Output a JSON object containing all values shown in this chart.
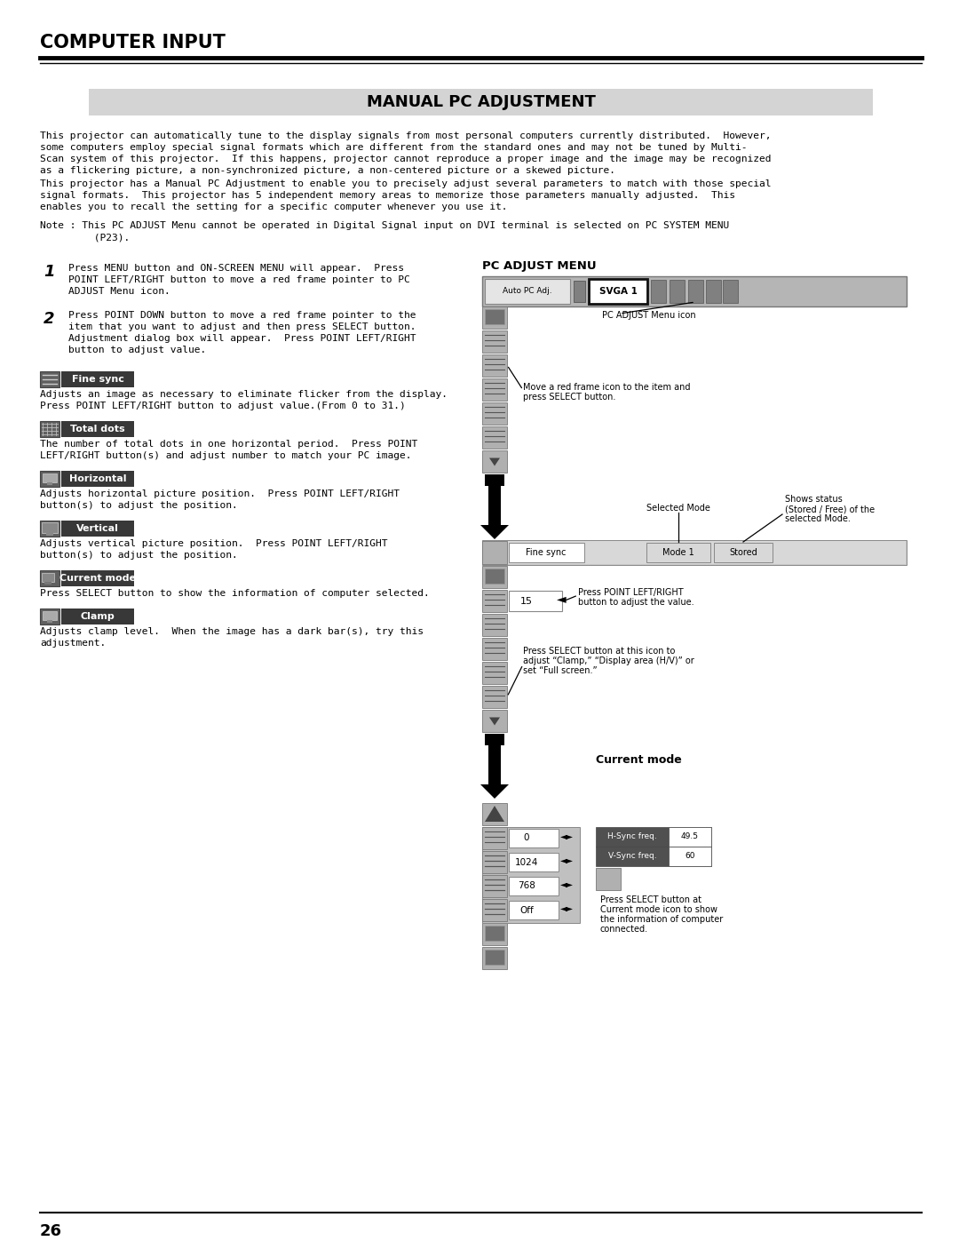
{
  "bg_color": "#ffffff",
  "page_num": "26",
  "header_title": "COMPUTER INPUT",
  "section_title": "MANUAL PC ADJUSTMENT",
  "section_title_bg": "#d4d4d4",
  "body_text_1a": "This projector can automatically tune to the display signals from most personal computers currently distributed.  However,",
  "body_text_1b": "some computers employ special signal formats which are different from the standard ones and may not be tuned by Multi-",
  "body_text_1c": "Scan system of this projector.  If this happens, projector cannot reproduce a proper image and the image may be recognized",
  "body_text_1d": "as a flickering picture, a non-synchronized picture, a non-centered picture or a skewed picture.",
  "body_text_2a": "This projector has a Manual PC Adjustment to enable you to precisely adjust several parameters to match with those special",
  "body_text_2b": "signal formats.  This projector has 5 independent memory areas to memorize those parameters manually adjusted.  This",
  "body_text_2c": "enables you to recall the setting for a specific computer whenever you use it.",
  "note_line1": "Note : This PC ADJUST Menu cannot be operated in Digital Signal input on DVI terminal is selected on PC SYSTEM MENU",
  "note_line2": "         (P23).",
  "step1_line1": "Press MENU button and ON-SCREEN MENU will appear.  Press",
  "step1_line2": "POINT LEFT/RIGHT button to move a red frame pointer to PC",
  "step1_line3": "ADJUST Menu icon.",
  "step2_line1": "Press POINT DOWN button to move a red frame pointer to the",
  "step2_line2": "item that you want to adjust and then press SELECT button.",
  "step2_line3": "Adjustment dialog box will appear.  Press POINT LEFT/RIGHT",
  "step2_line4": "button to adjust value.",
  "pc_adjust_menu_label": "PC ADJUST MENU",
  "pc_adjust_menu_icon_label": "PC ADJUST Menu icon",
  "move_red_frame_label1": "Move a red frame icon to the item and",
  "move_red_frame_label2": "press SELECT button.",
  "fine_sync_label": "Fine sync",
  "total_dots_label": "Total dots",
  "horizontal_label": "Horizontal",
  "vertical_label": "Vertical",
  "current_mode_label": "Current mode",
  "clamp_label": "Clamp",
  "fine_sync_desc1": "Adjusts an image as necessary to eliminate flicker from the display.",
  "fine_sync_desc2": "Press POINT LEFT/RIGHT button to adjust value.(From 0 to 31.)",
  "total_dots_desc1": "The number of total dots in one horizontal period.  Press POINT",
  "total_dots_desc2": "LEFT/RIGHT button(s) and adjust number to match your PC image.",
  "horizontal_desc1": "Adjusts horizontal picture position.  Press POINT LEFT/RIGHT",
  "horizontal_desc2": "button(s) to adjust the position.",
  "vertical_desc1": "Adjusts vertical picture position.  Press POINT LEFT/RIGHT",
  "vertical_desc2": "button(s) to adjust the position.",
  "current_mode_desc": "Press SELECT button to show the information of computer selected.",
  "clamp_desc1": "Adjusts clamp level.  When the image has a dark bar(s), try this",
  "clamp_desc2": "adjustment.",
  "selected_mode_label": "Selected Mode",
  "shows_status_line1": "Shows status",
  "shows_status_line2": "(Stored / Free) of the",
  "shows_status_line3": "selected Mode.",
  "press_point_lr_label1": "Press POINT LEFT/RIGHT",
  "press_point_lr_label2": "button to adjust the value.",
  "press_select_label1": "Press SELECT button at this icon to",
  "press_select_label2": "adjust “Clamp,” “Display area (H/V)” or",
  "press_select_label3": "set “Full screen.”",
  "current_mode_right_label": "Current mode",
  "press_select_current1": "Press SELECT button at",
  "press_select_current2": "Current mode icon to show",
  "press_select_current3": "the information of computer",
  "press_select_current4": "connected.",
  "hsync_label": "H-Sync freq.",
  "hsync_val": "49.5",
  "vsync_label": "V-Sync freq.",
  "vsync_val": "60",
  "val_15": "15",
  "val_0": "0",
  "val_1024": "1024",
  "val_768": "768",
  "val_off": "Off",
  "auto_pc_adj": "Auto PC Adj.",
  "svga1": "SVGA 1",
  "fine_sync_row": "Fine sync",
  "mode1": "Mode 1",
  "stored": "Stored"
}
